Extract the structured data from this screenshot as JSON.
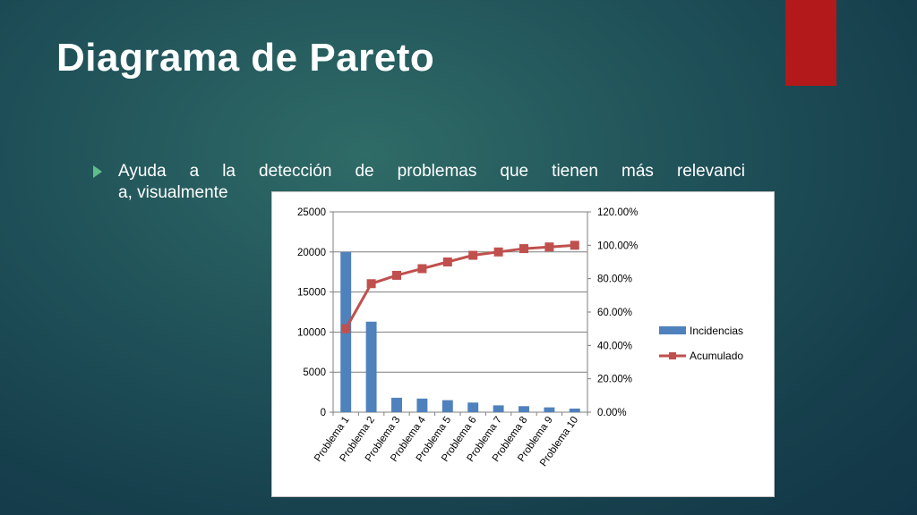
{
  "slide": {
    "title": "Diagrama de Pareto",
    "bullet_line1": "Ayuda a la detección de problemas que tienen más relevanci",
    "bullet_line2": "a, visualmente",
    "accent_color": "#b3191b"
  },
  "chart_data": {
    "type": "bar",
    "title": "",
    "xlabel": "",
    "ylabel": "",
    "categories": [
      "Problema 1",
      "Problema 2",
      "Problema 3",
      "Problema 4",
      "Problema 5",
      "Problema 6",
      "Problema 7",
      "Problema 8",
      "Problema 9",
      "Problema 10"
    ],
    "series": [
      {
        "name": "Incidencias",
        "type": "bar",
        "axis": "left",
        "color": "#4f81bd",
        "values": [
          20000,
          11300,
          1800,
          1700,
          1500,
          1200,
          850,
          750,
          600,
          450
        ]
      },
      {
        "name": "Acumulado",
        "type": "line",
        "axis": "right",
        "color": "#c0504d",
        "values": [
          0.5,
          0.77,
          0.82,
          0.86,
          0.9,
          0.94,
          0.96,
          0.98,
          0.99,
          1.0
        ]
      }
    ],
    "ylim_left": [
      0,
      25000
    ],
    "ylim_right": [
      0,
      1.2
    ],
    "yticks_left": [
      "0",
      "5000",
      "10000",
      "15000",
      "20000",
      "25000"
    ],
    "yticks_right": [
      "0.00%",
      "20.00%",
      "40.00%",
      "60.00%",
      "80.00%",
      "100.00%",
      "120.00%"
    ],
    "grid": true,
    "legend": "right"
  }
}
